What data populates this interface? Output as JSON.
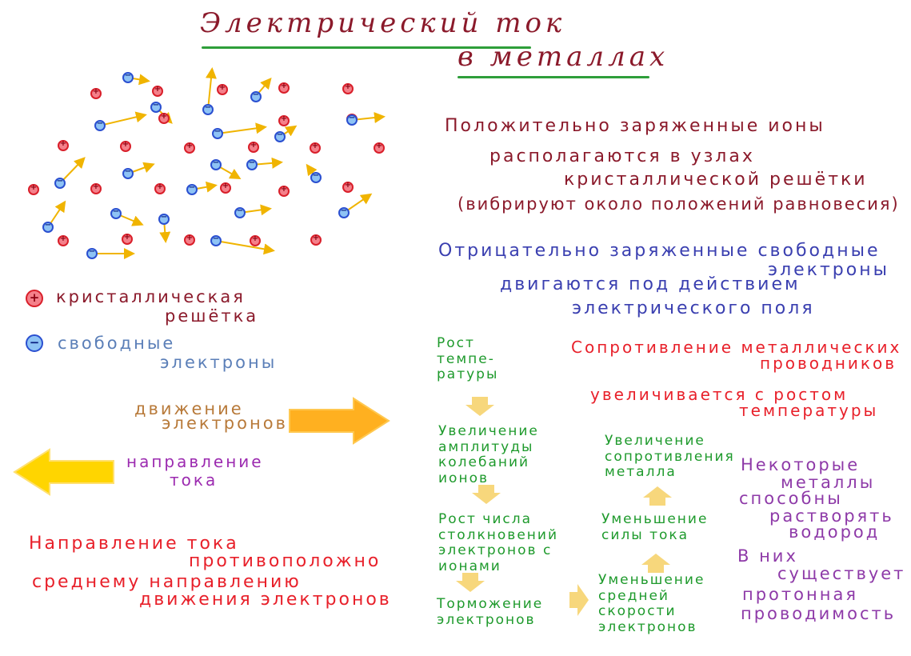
{
  "title": {
    "line1": "Электрический ток",
    "line2": "в металлах"
  },
  "statements": {
    "ions": [
      "Положительно заряженные ионы",
      "располагаются в узлах",
      "кристаллической решётки",
      "(вибрируют около положений равновесия)"
    ],
    "electrons": [
      "Отрицательно заряженные свободные",
      "электроны",
      "двигаются под действием",
      "электрического поля"
    ]
  },
  "legend": {
    "lattice": [
      "кристаллическая",
      "решётка"
    ],
    "free_electrons": [
      "свободные",
      "электроны"
    ],
    "electron_motion": [
      "движение",
      "электронов"
    ],
    "current_direction": [
      "направление",
      "тока"
    ]
  },
  "conclusion": [
    "Направление тока",
    "противоположно",
    "среднему направлению",
    "движения электронов"
  ],
  "resistance": [
    "Сопротивление металлических",
    "проводников",
    "увеличивается с ростом",
    "температуры"
  ],
  "chain_left": [
    "Рост темпе-ратуры",
    "Увеличение амплитуды колебаний ионов",
    "Рост числа столкновений электронов с ионами",
    "Торможение электронов"
  ],
  "chain_right": [
    "Уменьшение средней скорости электронов",
    "Уменьшение силы тока",
    "Увеличение сопротивления металла"
  ],
  "hydrogen": [
    "Некоторые",
    "металлы",
    "способны",
    "растворять",
    "водород"
  ],
  "proton": [
    "В них",
    "существует",
    "протонная",
    "проводимость"
  ],
  "colors": {
    "title": "#8b1a2b",
    "green": "#1e9a2c",
    "ion_text": "#8b1a2b",
    "electron_text": "#3a3fb0",
    "legend_electron": "#5b7fb8",
    "motion": "#b87a3a",
    "current": "#9c2bb0",
    "red": "#e8202a",
    "purple": "#8e3aa8",
    "arrow_yellow": "#ffd500",
    "arrow_orange": "#ffb020"
  }
}
